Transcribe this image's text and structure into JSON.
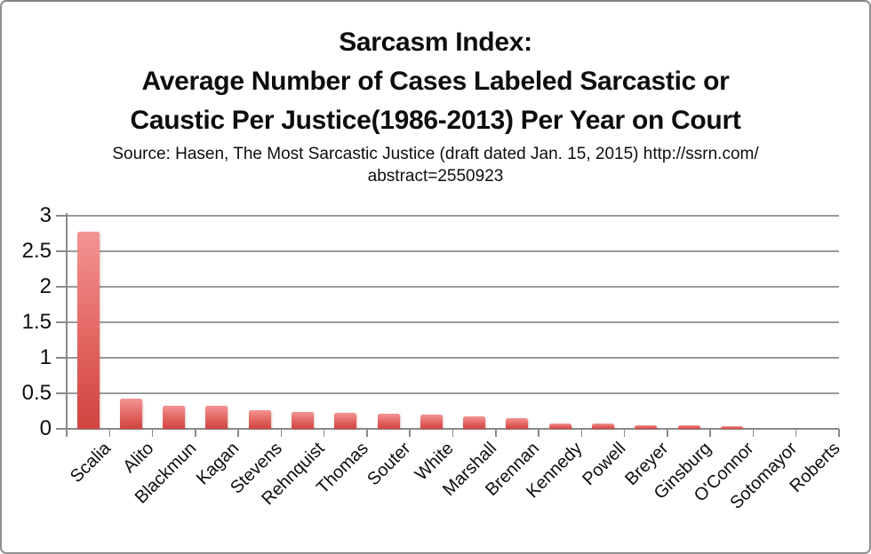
{
  "title": {
    "lines": [
      "Sarcasm Index:",
      "Average Number of Cases Labeled Sarcastic or",
      "Caustic Per Justice(1986-2013) Per Year on Court"
    ]
  },
  "source": {
    "lines": [
      "Source: Hasen, The Most Sarcastic Justice (draft dated Jan. 15, 2015) http://ssrn.com/",
      "abstract=2550923"
    ]
  },
  "chart_data": {
    "type": "bar",
    "title": "Sarcasm Index: Average Number of Cases Labeled Sarcastic or Caustic Per Justice(1986-2013) Per Year on Court",
    "categories": [
      "Scalia",
      "Alito",
      "Blackmun",
      "Kagan",
      "Stevens",
      "Rehnquist",
      "Thomas",
      "Souter",
      "White",
      "Marshall",
      "Brennan",
      "Kennedy",
      "Powell",
      "Breyer",
      "Ginsburg",
      "O'Connor",
      "Sotomayor",
      "Roberts"
    ],
    "values": [
      2.78,
      0.43,
      0.33,
      0.33,
      0.26,
      0.24,
      0.23,
      0.21,
      0.2,
      0.17,
      0.15,
      0.08,
      0.07,
      0.05,
      0.05,
      0.04,
      0,
      0
    ],
    "xlabel": "",
    "ylabel": "",
    "ylim": [
      0,
      3
    ],
    "yticks": [
      0,
      0.5,
      1,
      1.5,
      2,
      2.5,
      3
    ],
    "ytick_labels": [
      "0",
      "0.5",
      "1",
      "1.5",
      "2",
      "2.5",
      "3"
    ],
    "grid": true,
    "legend": false
  },
  "colors": {
    "bar_top": "#f39494",
    "bar_mid": "#e26560",
    "bar_bottom": "#cf4441",
    "grid": "#9a9a9a",
    "axis": "#8a8a8a",
    "text": "#0d0d0d"
  }
}
